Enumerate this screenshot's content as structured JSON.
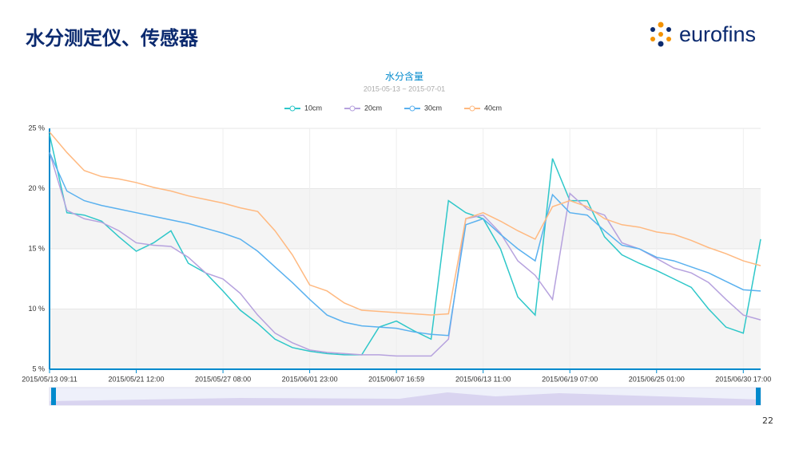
{
  "header": {
    "title": "水分测定仪、传感器",
    "logo": "eurofins"
  },
  "page_number": "22",
  "chart_data": {
    "type": "line",
    "title": "水分含量",
    "subtitle": "2015-05-13 ~ 2015-07-01",
    "categories": [
      "2015/05/13 09:11",
      null,
      null,
      null,
      null,
      "2015/05/21 12:00",
      null,
      null,
      null,
      null,
      "2015/05/27 08:00",
      null,
      null,
      null,
      null,
      "2015/06/01 23:00",
      null,
      null,
      null,
      null,
      "2015/06/07 16:59",
      null,
      null,
      null,
      null,
      "2015/06/13 11:00",
      null,
      null,
      null,
      null,
      "2015/06/19 07:00",
      null,
      null,
      null,
      null,
      "2015/06/25 01:00",
      null,
      null,
      null,
      null,
      "2015/06/30 17:00",
      null
    ],
    "ylim": [
      5,
      25
    ],
    "yticks": [
      {
        "value": 5,
        "label": "5 %"
      },
      {
        "value": 10,
        "label": "10 %"
      },
      {
        "value": 15,
        "label": "15 %"
      },
      {
        "value": 20,
        "label": "20 %"
      },
      {
        "value": 25,
        "label": "25 %"
      }
    ],
    "grid": true,
    "legend": "top",
    "series": [
      {
        "name": "10cm",
        "color": "#2ec7c9",
        "values": [
          24.5,
          18,
          17.8,
          17.3,
          16,
          14.8,
          15.5,
          16.5,
          13.8,
          13,
          11.5,
          9.9,
          8.8,
          7.5,
          6.8,
          6.5,
          6.3,
          6.2,
          6.2,
          8.5,
          9,
          8.2,
          7.5,
          19,
          18,
          17.5,
          15,
          11,
          9.5,
          22.5,
          19,
          19,
          16,
          14.5,
          13.8,
          13.2,
          12.5,
          11.8,
          10,
          8.5,
          8,
          15.8
        ]
      },
      {
        "name": "20cm",
        "color": "#b6a2de",
        "values": [
          23,
          18.2,
          17.5,
          17.2,
          16.5,
          15.5,
          15.3,
          15.2,
          14.3,
          13,
          12.5,
          11.3,
          9.5,
          8,
          7.2,
          6.6,
          6.4,
          6.3,
          6.2,
          6.2,
          6.1,
          6.1,
          6.1,
          7.5,
          17.5,
          17.8,
          16.3,
          14,
          12.8,
          10.8,
          19.6,
          18.3,
          17.8,
          15.5,
          15,
          14.2,
          13.4,
          13,
          12.2,
          10.8,
          9.5,
          9.1
        ]
      },
      {
        "name": "30cm",
        "color": "#5ab1ef",
        "values": [
          23,
          19.8,
          19,
          18.6,
          18.3,
          18,
          17.7,
          17.4,
          17.1,
          16.7,
          16.3,
          15.8,
          14.8,
          13.5,
          12.2,
          10.8,
          9.5,
          8.9,
          8.6,
          8.5,
          8.4,
          8.1,
          7.9,
          7.8,
          17,
          17.5,
          16.2,
          15,
          14,
          19.5,
          18,
          17.8,
          16.5,
          15.3,
          15,
          14.3,
          14,
          13.5,
          13,
          12.3,
          11.6,
          11.5
        ]
      },
      {
        "name": "40cm",
        "color": "#ffb980",
        "values": [
          24.7,
          23,
          21.5,
          21,
          20.8,
          20.5,
          20.1,
          19.8,
          19.4,
          19.1,
          18.8,
          18.4,
          18.1,
          16.5,
          14.5,
          12,
          11.5,
          10.5,
          9.9,
          9.8,
          9.7,
          9.6,
          9.5,
          9.6,
          17.5,
          18,
          17.3,
          16.5,
          15.8,
          18.5,
          19,
          18.5,
          17.5,
          17,
          16.8,
          16.4,
          16.2,
          15.7,
          15.1,
          14.6,
          14,
          13.6
        ]
      }
    ]
  }
}
